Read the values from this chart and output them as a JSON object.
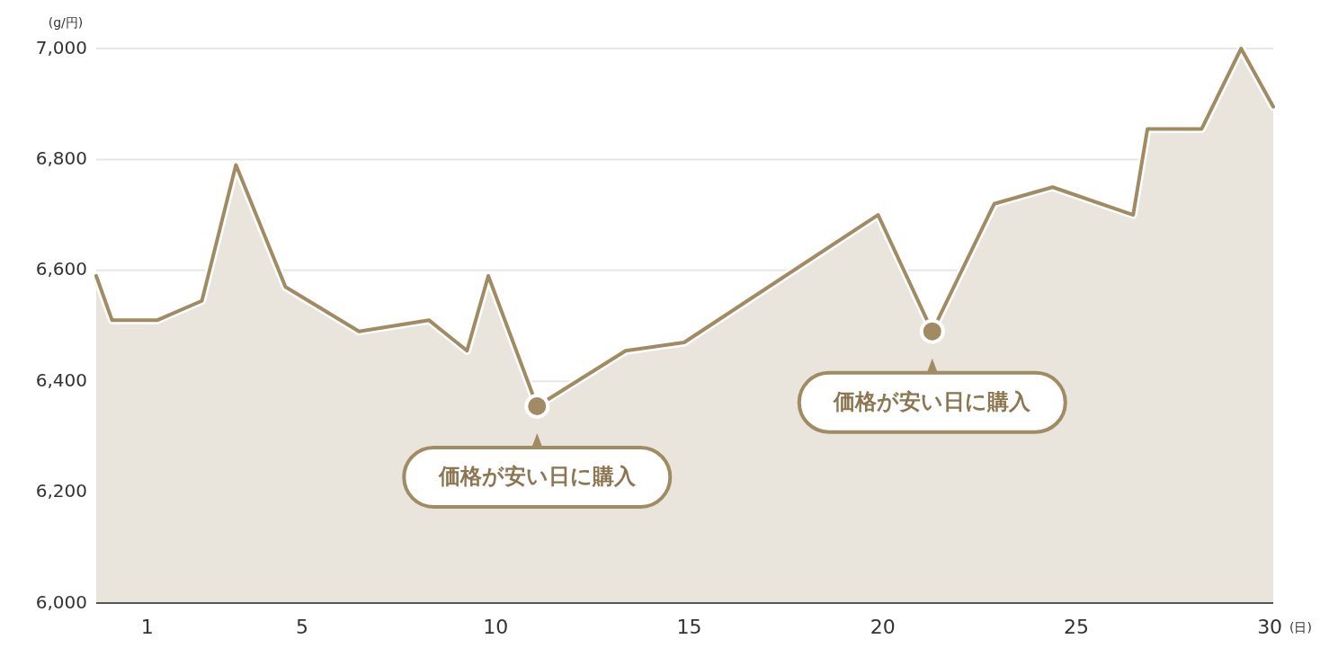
{
  "chart_data": {
    "type": "area",
    "ylabel": "(g/円)",
    "xlabel": "(日)",
    "x": [
      -0.32,
      0.09,
      1.25,
      2.41,
      3.29,
      4.57,
      6.47,
      8.28,
      9.26,
      9.81,
      11.07,
      13.36,
      14.87,
      19.88,
      21.28,
      22.88,
      24.39,
      26.47,
      26.84,
      28.24,
      29.26,
      30.09
    ],
    "series": [
      {
        "color": "#a08b62",
        "values": [
          6590,
          6510,
          6510,
          6545,
          6790,
          6570,
          6490,
          6510,
          6455,
          6590,
          6355,
          6455,
          6470,
          6700,
          6490,
          6720,
          6750,
          6700,
          6855,
          6855,
          7000,
          6895
        ]
      }
    ],
    "xlim": [
      -0.32,
      30.09
    ],
    "xticks": [
      1,
      5,
      10,
      15,
      20,
      25,
      30
    ],
    "ylim": [
      6000,
      7000
    ],
    "yticks": [
      {
        "value": 6000,
        "label": "6,000"
      },
      {
        "value": 6200,
        "label": "6,200"
      },
      {
        "value": 6400,
        "label": "6,400"
      },
      {
        "value": 6600,
        "label": "6,600"
      },
      {
        "value": 6800,
        "label": "6,800"
      },
      {
        "value": 7000,
        "label": "7,000"
      }
    ],
    "grid": "y",
    "annotations": [
      {
        "text": "価格が安い日に購入",
        "x": 11.07,
        "y": 6355
      },
      {
        "text": "価格が安い日に購入",
        "x": 21.28,
        "y": 6490
      }
    ]
  }
}
